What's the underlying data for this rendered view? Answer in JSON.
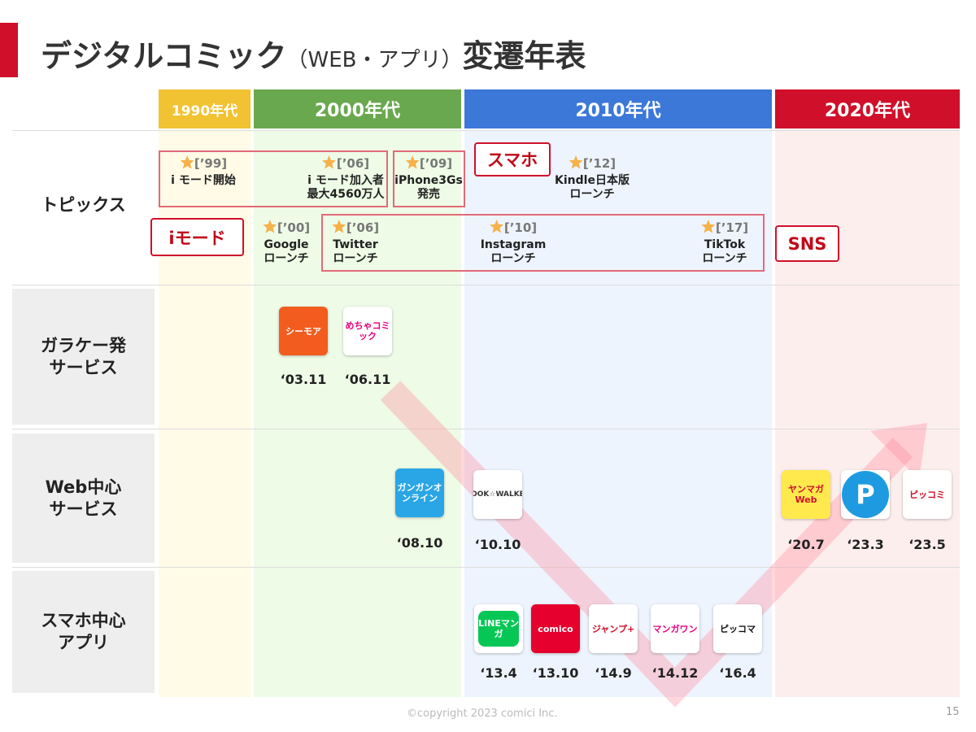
{
  "title": {
    "main": "デジタルコミック",
    "sub": "（WEB・アプリ）",
    "tail": "変遷年表"
  },
  "eras": [
    "1990年代",
    "2000年代",
    "2010年代",
    "2020年代"
  ],
  "rows": [
    [
      "トピックス"
    ],
    [
      "ガラケー発",
      "サービス"
    ],
    [
      "Web中心",
      "サービス"
    ],
    [
      "スマホ中心",
      "アプリ"
    ]
  ],
  "callouts": [
    "スマホ",
    "iモード",
    "SNS"
  ],
  "topics": [
    {
      "year": "[’99]",
      "lines": [
        "i モード開始"
      ]
    },
    {
      "year": "[’06]",
      "lines": [
        "i モード加入者",
        "最大4560万人"
      ]
    },
    {
      "year": "[’09]",
      "lines": [
        "iPhone3Gs",
        "発売"
      ]
    },
    {
      "year": "[’12]",
      "lines": [
        "Kindle日本版",
        "ローンチ"
      ]
    },
    {
      "year": "[’00]",
      "lines": [
        "Google",
        "ローンチ"
      ]
    },
    {
      "year": "[’06]",
      "lines": [
        "Twitter",
        "ローンチ"
      ]
    },
    {
      "year": "[’10]",
      "lines": [
        "Instagram",
        "ローンチ"
      ]
    },
    {
      "year": "[’17]",
      "lines": [
        "TikTok",
        "ローンチ"
      ]
    }
  ],
  "services": [
    [
      {
        "icon": "シーモア",
        "date": "‘03.11"
      },
      {
        "icon": "めちゃコミック",
        "date": "‘06.11"
      }
    ],
    [
      {
        "icon": "ガンガンオンライン",
        "date": "‘08.10"
      },
      {
        "icon": "BOOK☆WALKER",
        "date": "‘10.10"
      },
      {
        "icon": "ヤンマガWeb",
        "date": "‘20.7"
      },
      {
        "icon": "P",
        "date": "‘23.3"
      },
      {
        "icon": "ピッコミ",
        "date": "‘23.5"
      }
    ],
    [
      {
        "icon": "LINEマンガ",
        "date": "‘13.4"
      },
      {
        "icon": "comico",
        "date": "‘13.10"
      },
      {
        "icon": "ジャンプ+",
        "date": "‘14.9"
      },
      {
        "icon": "マンガワン",
        "date": "‘14.12"
      },
      {
        "icon": "ピッコマ",
        "date": "‘16.4"
      }
    ]
  ],
  "footer": {
    "copyright": "©copyright 2023 comici Inc.",
    "page": "15"
  }
}
